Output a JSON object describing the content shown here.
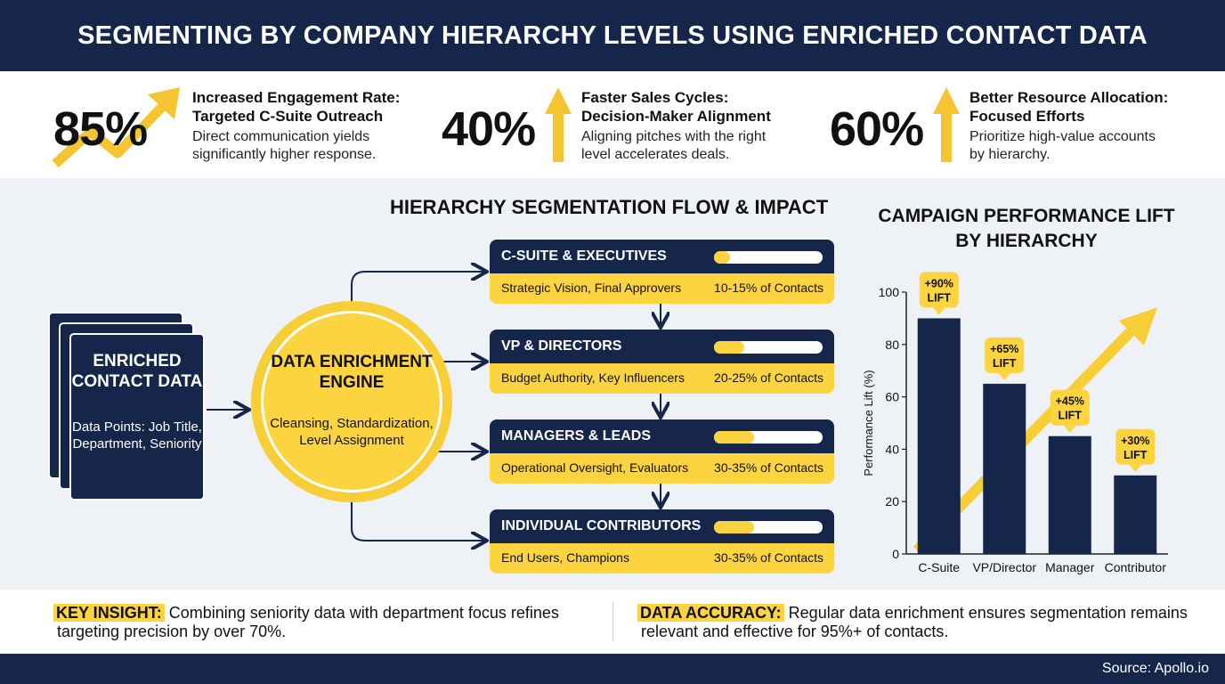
{
  "header": {
    "title": "SEGMENTING BY COMPANY HIERARCHY LEVELS USING ENRICHED CONTACT DATA"
  },
  "stats": [
    {
      "value": "85%",
      "title_line1": "Increased Engagement Rate:",
      "title_line2": "Targeted C-Suite Outreach",
      "desc_line1": "Direct communication yields",
      "desc_line2": "significantly higher response."
    },
    {
      "value": "40%",
      "title_line1": "Faster Sales Cycles:",
      "title_line2": "Decision-Maker Alignment",
      "desc_line1": "Aligning pitches with the right",
      "desc_line2": "level accelerates deals."
    },
    {
      "value": "60%",
      "title_line1": "Better Resource Allocation:",
      "title_line2": "Focused Efforts",
      "desc_line1": "Prioritize high-value accounts",
      "desc_line2": "by hierarchy."
    }
  ],
  "flow": {
    "title": "HIERARCHY SEGMENTATION FLOW & IMPACT",
    "source": {
      "title": "ENRICHED CONTACT DATA",
      "desc": "Data Points: Job Title, Department, Seniority"
    },
    "engine": {
      "title": "DATA ENRICHMENT ENGINE",
      "desc": "Cleansing, Standardization, Level Assignment"
    },
    "levels": [
      {
        "name": "C-SUITE & EXECUTIVES",
        "role": "Strategic Vision, Final Approvers",
        "share": "10-15% of Contacts",
        "bar_fill": 0.15
      },
      {
        "name": "VP & DIRECTORS",
        "role": "Budget Authority, Key Influencers",
        "share": "20-25% of Contacts",
        "bar_fill": 0.28
      },
      {
        "name": "MANAGERS & LEADS",
        "role": "Operational Oversight, Evaluators",
        "share": "30-35% of Contacts",
        "bar_fill": 0.37
      },
      {
        "name": "INDIVIDUAL CONTRIBUTORS",
        "role": "End Users, Champions",
        "share": "30-35% of Contacts",
        "bar_fill": 0.37
      }
    ]
  },
  "chart_data": {
    "type": "bar",
    "title": "CAMPAIGN PERFORMANCE LIFT BY HIERARCHY",
    "categories": [
      "C-Suite",
      "VP/Director",
      "Manager",
      "Contributor"
    ],
    "values": [
      90,
      65,
      45,
      30
    ],
    "data_labels": [
      "+90% LIFT",
      "+65% LIFT",
      "+45% LIFT",
      "+30% LIFT"
    ],
    "ylabel": "Performance Lift (%)",
    "xlabel": "",
    "ylim": [
      0,
      100
    ],
    "yticks": [
      0,
      20,
      40,
      60,
      80,
      100
    ],
    "grid": false
  },
  "insights": {
    "key": {
      "label": "KEY INSIGHT:",
      "text": "Combining seniority data with department focus refines",
      "text2": "targeting precision by over 70%."
    },
    "accuracy": {
      "label": "DATA ACCURACY:",
      "text": "Regular data enrichment ensures segmentation remains",
      "text2": "relevant and effective for 95%+ of contacts."
    }
  },
  "footer": {
    "source": "Source: Apollo.io"
  },
  "colors": {
    "navy": "#16264a",
    "yellow": "#fbd440",
    "accent_yellow": "#f5c531"
  }
}
